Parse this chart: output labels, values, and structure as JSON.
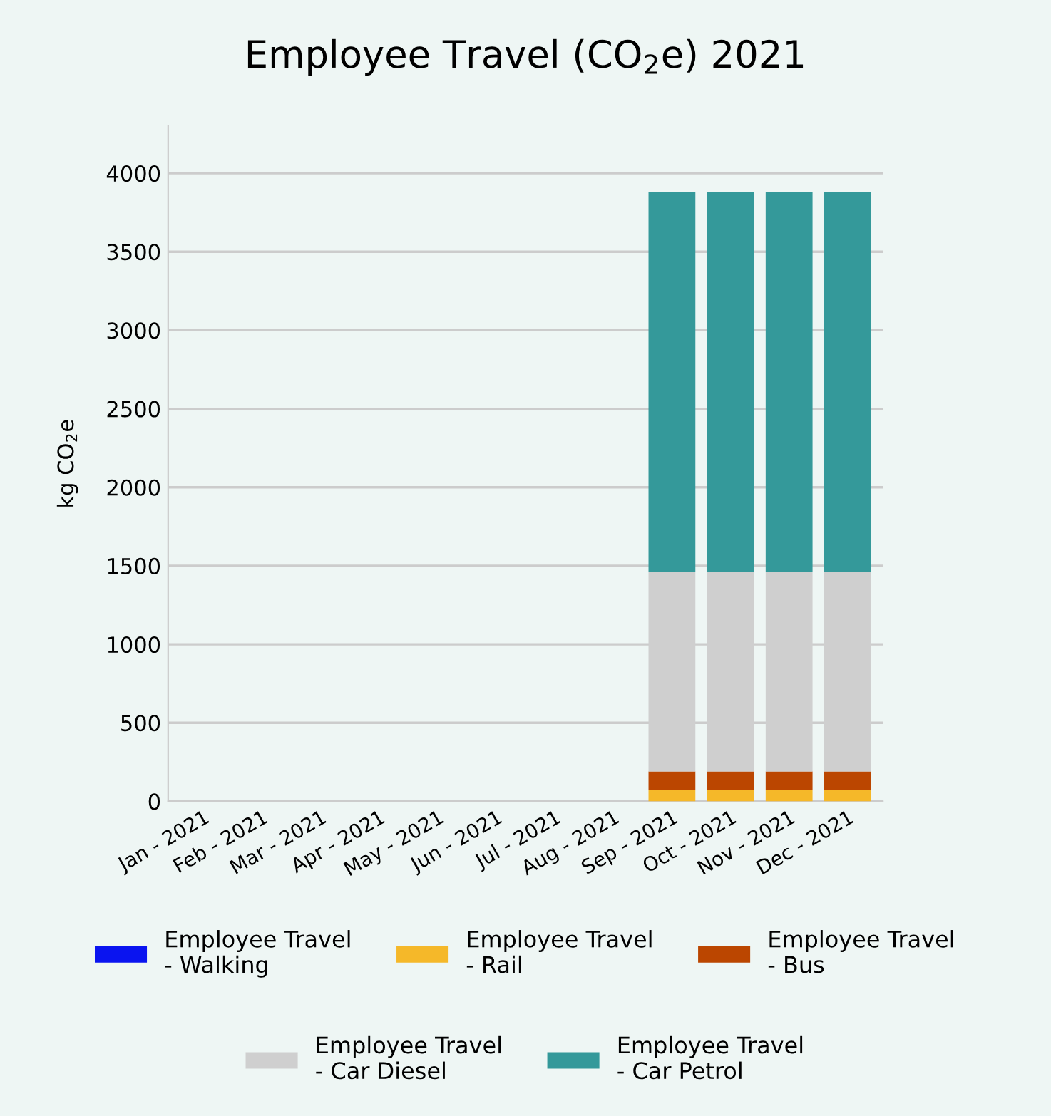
{
  "chart_data": {
    "type": "bar",
    "title": "Employee Travel (CO$_{2}$e) 2021",
    "ylabel": "kg CO$_{2}$e",
    "categories": [
      "Jan - 2021",
      "Feb - 2021",
      "Mar - 2021",
      "Apr - 2021",
      "May - 2021",
      "Jun - 2021",
      "Jul - 2021",
      "Aug - 2021",
      "Sep - 2021",
      "Oct - 2021",
      "Nov - 2021",
      "Dec - 2021"
    ],
    "stacked": true,
    "series": [
      {
        "name": "Employee Travel - Walking",
        "color": "#0a14f0",
        "values": [
          0,
          0,
          0,
          0,
          0,
          0,
          0,
          0,
          0,
          0,
          0,
          0
        ]
      },
      {
        "name": "Employee Travel - Rail",
        "color": "#f5b829",
        "values": [
          0,
          0,
          0,
          0,
          0,
          0,
          0,
          0,
          70,
          70,
          70,
          70
        ]
      },
      {
        "name": "Employee Travel - Bus",
        "color": "#bb4600",
        "values": [
          0,
          0,
          0,
          0,
          0,
          0,
          0,
          0,
          120,
          120,
          120,
          120
        ]
      },
      {
        "name": "Employee Travel - Car Diesel",
        "color": "#cfcfcf",
        "values": [
          0,
          0,
          0,
          0,
          0,
          0,
          0,
          0,
          1270,
          1270,
          1270,
          1270
        ]
      },
      {
        "name": "Employee Travel - Car Petrol",
        "color": "#34999a",
        "values": [
          0,
          0,
          0,
          0,
          0,
          0,
          0,
          0,
          2420,
          2420,
          2420,
          2420
        ]
      }
    ],
    "ylim": [
      0,
      4300
    ],
    "yticks": [
      0,
      500,
      1000,
      1500,
      2000,
      2500,
      3000,
      3500,
      4000
    ],
    "grid": "y",
    "legend": "bottom"
  }
}
